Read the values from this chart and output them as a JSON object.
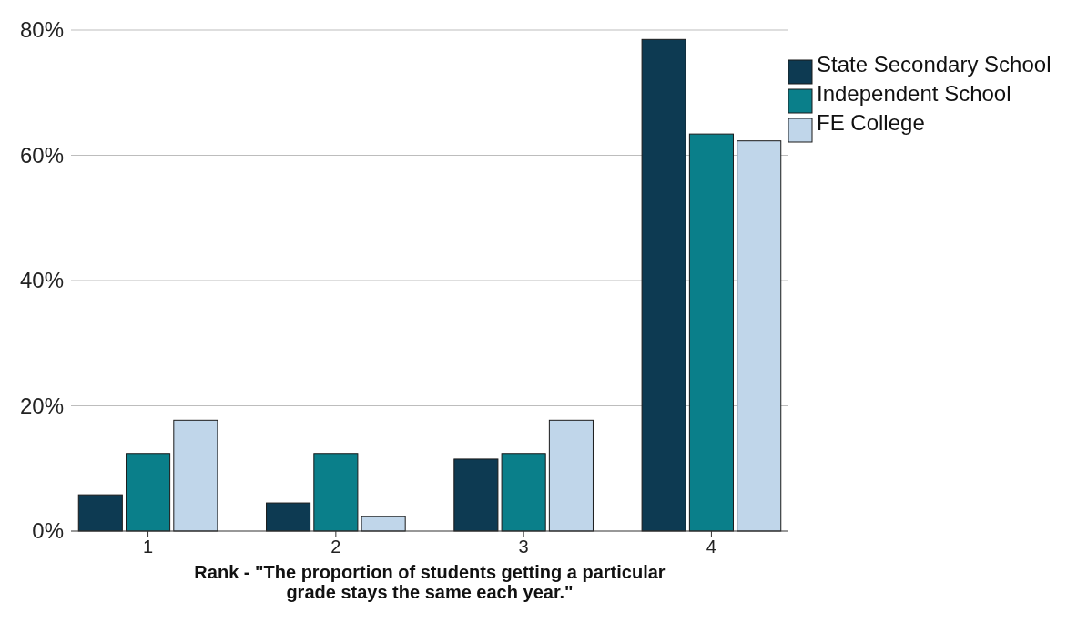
{
  "chart_data": {
    "type": "bar",
    "xlabel": "Rank - \"The proportion of students getting a particular grade stays the same each year.\"",
    "categories": [
      "1",
      "2",
      "3",
      "4"
    ],
    "series": [
      {
        "name": "State Secondary School",
        "color": "#0d3a52",
        "values": [
          5.8,
          4.5,
          11.5,
          78.5
        ]
      },
      {
        "name": "Independent School",
        "color": "#0a7f8a",
        "values": [
          12.4,
          12.4,
          12.4,
          63.4
        ]
      },
      {
        "name": "FE College",
        "color": "#c0d6ea",
        "values": [
          17.7,
          2.3,
          17.7,
          62.3
        ]
      }
    ],
    "ylim": [
      0,
      80
    ],
    "yticks": [
      {
        "value": 0,
        "label": "0%"
      },
      {
        "value": 20,
        "label": "20%"
      },
      {
        "value": 40,
        "label": "40%"
      },
      {
        "value": 60,
        "label": "60%"
      },
      {
        "value": 80,
        "label": "80%"
      }
    ],
    "grid": "y",
    "legend": "top right"
  }
}
